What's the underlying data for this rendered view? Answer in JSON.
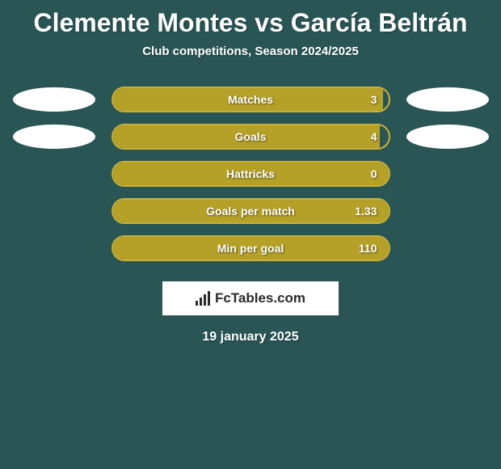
{
  "title": "Clemente Montes vs García Beltrán",
  "subtitle": "Club competitions, Season 2024/2025",
  "date": "19 january 2025",
  "logo": {
    "text": "FcTables.com"
  },
  "colors": {
    "background": "#2a5555",
    "bar_border": "#c9b037",
    "bar_fill": "#b5a028",
    "text": "#ffffff",
    "ellipse": "#ffffff",
    "logo_bg": "#ffffff",
    "logo_text": "#2a2a2a"
  },
  "stats": [
    {
      "label": "Matches",
      "value": "3",
      "fill_percent": 98,
      "show_left_ellipse": true,
      "show_right_ellipse": true
    },
    {
      "label": "Goals",
      "value": "4",
      "fill_percent": 97,
      "show_left_ellipse": true,
      "show_right_ellipse": true
    },
    {
      "label": "Hattricks",
      "value": "0",
      "fill_percent": 100,
      "show_left_ellipse": false,
      "show_right_ellipse": false
    },
    {
      "label": "Goals per match",
      "value": "1.33",
      "fill_percent": 100,
      "show_left_ellipse": false,
      "show_right_ellipse": false
    },
    {
      "label": "Min per goal",
      "value": "110",
      "fill_percent": 100,
      "show_left_ellipse": false,
      "show_right_ellipse": false
    }
  ]
}
